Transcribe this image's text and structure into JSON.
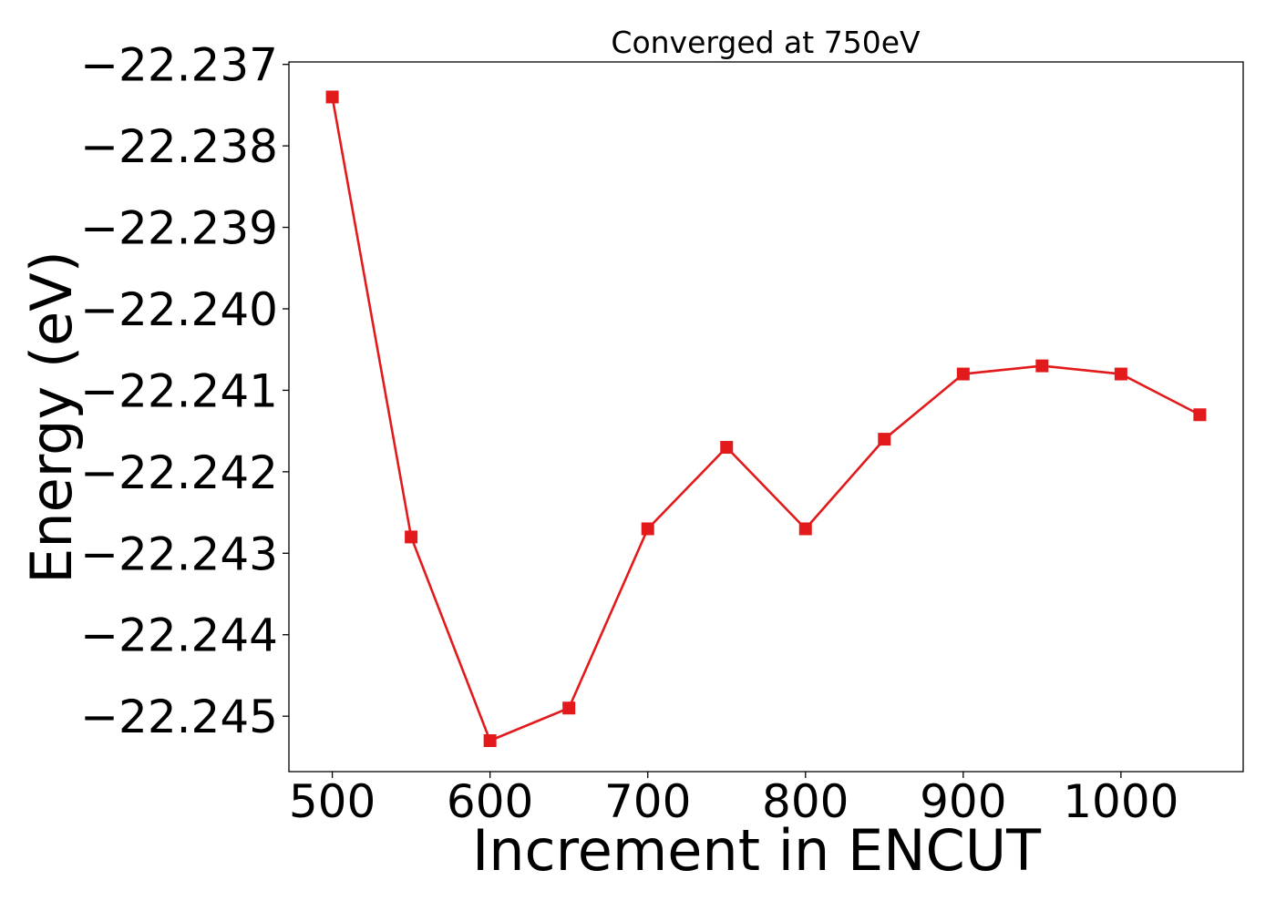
{
  "chart_data": {
    "type": "line",
    "title": "Converged at 750eV",
    "xlabel": "Increment in ENCUT",
    "ylabel": "Energy (eV)",
    "x": [
      500,
      550,
      600,
      650,
      700,
      750,
      800,
      850,
      900,
      950,
      1000,
      1050
    ],
    "series": [
      {
        "values": [
          -22.2374,
          -22.2428,
          -22.2453,
          -22.2449,
          -22.2427,
          -22.2417,
          -22.2427,
          -22.2416,
          -22.2408,
          -22.2407,
          -22.2408,
          -22.2413
        ],
        "color": "#e31a1c",
        "marker": "square"
      }
    ],
    "xticks": [
      500,
      600,
      700,
      800,
      900,
      1000
    ],
    "xtick_labels": [
      "500",
      "600",
      "700",
      "800",
      "900",
      "1000"
    ],
    "yticks": [
      -22.237,
      -22.238,
      -22.239,
      -22.24,
      -22.241,
      -22.242,
      -22.243,
      -22.244,
      -22.245
    ],
    "ytick_labels": [
      "−22.237",
      "−22.238",
      "−22.239",
      "−22.240",
      "−22.241",
      "−22.242",
      "−22.243",
      "−22.244",
      "−22.245"
    ],
    "xlim": [
      472.5,
      1077.5
    ],
    "ylim": [
      -22.24568,
      -22.23697
    ],
    "grid": false,
    "legend": "none"
  }
}
